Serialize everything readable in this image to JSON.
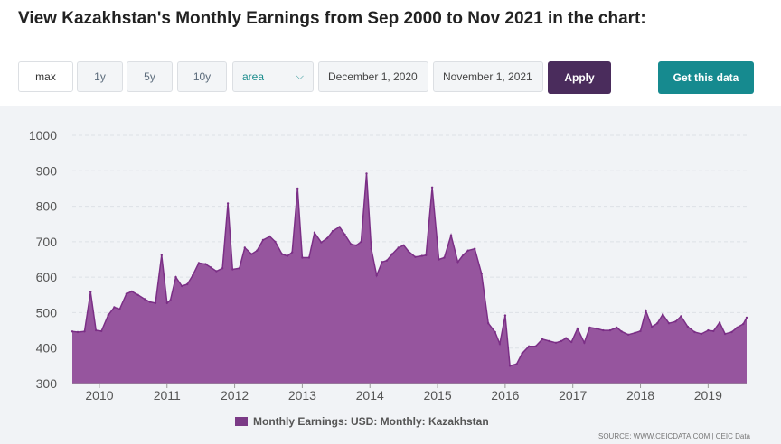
{
  "title": "View Kazakhstan's Monthly Earnings from Sep 2000 to Nov 2021 in the chart:",
  "controls": {
    "range_buttons": [
      "max",
      "1y",
      "5y",
      "10y"
    ],
    "chart_type_selected": "area",
    "date_from": "December 1, 2020",
    "date_to": "November 1, 2021",
    "apply_label": "Apply",
    "get_data_label": "Get this data"
  },
  "colors": {
    "area_fill": "#96559e",
    "area_stroke": "#7b2f86",
    "apply_bg": "#4a2c5c",
    "get_data_bg": "#168a8f",
    "panel_bg": "#f1f3f6"
  },
  "legend_label": "Monthly Earnings: USD: Monthly: Kazakhstan",
  "source_text": "SOURCE: WWW.CEICDATA.COM | CEIC Data",
  "chart_data": {
    "type": "area",
    "title": "",
    "xlabel": "",
    "ylabel": "",
    "ylim": [
      300,
      1000
    ],
    "yticks": [
      300,
      400,
      500,
      600,
      700,
      800,
      900,
      1000
    ],
    "xticks": [
      2010,
      2011,
      2012,
      2013,
      2014,
      2015,
      2016,
      2017,
      2018,
      2019
    ],
    "grid": true,
    "legend_position": "bottom",
    "series": [
      {
        "name": "Monthly Earnings: USD: Monthly: Kazakhstan",
        "x": [
          2009.6,
          2009.68,
          2009.78,
          2009.87,
          2009.95,
          2010.03,
          2010.13,
          2010.22,
          2010.3,
          2010.4,
          2010.48,
          2010.57,
          2010.67,
          2010.75,
          2010.83,
          2010.92,
          2011.0,
          2011.05,
          2011.13,
          2011.22,
          2011.3,
          2011.38,
          2011.47,
          2011.57,
          2011.65,
          2011.73,
          2011.82,
          2011.9,
          2011.97,
          2012.07,
          2012.15,
          2012.25,
          2012.33,
          2012.42,
          2012.52,
          2012.6,
          2012.7,
          2012.78,
          2012.85,
          2012.93,
          2013.0,
          2013.1,
          2013.18,
          2013.28,
          2013.37,
          2013.45,
          2013.55,
          2013.63,
          2013.72,
          2013.8,
          2013.87,
          2013.95,
          2014.02,
          2014.1,
          2014.18,
          2014.25,
          2014.33,
          2014.42,
          2014.5,
          2014.57,
          2014.67,
          2014.77,
          2014.83,
          2014.92,
          2015.02,
          2015.1,
          2015.2,
          2015.3,
          2015.38,
          2015.45,
          2015.55,
          2015.65,
          2015.75,
          2015.85,
          2015.92,
          2016.0,
          2016.07,
          2016.17,
          2016.25,
          2016.35,
          2016.45,
          2016.55,
          2016.65,
          2016.75,
          2016.83,
          2016.9,
          2016.98,
          2017.07,
          2017.17,
          2017.25,
          2017.35,
          2017.45,
          2017.55,
          2017.65,
          2017.72,
          2017.82,
          2017.92,
          2018.0,
          2018.08,
          2018.17,
          2018.25,
          2018.33,
          2018.42,
          2018.52,
          2018.6,
          2018.7,
          2018.8,
          2018.9,
          2019.0,
          2019.08,
          2019.17,
          2019.25,
          2019.35,
          2019.43,
          2019.52,
          2019.57
        ],
        "values": [
          447,
          445,
          447,
          558,
          450,
          448,
          493,
          515,
          510,
          553,
          560,
          550,
          538,
          530,
          527,
          662,
          527,
          535,
          600,
          575,
          580,
          605,
          640,
          637,
          627,
          617,
          625,
          808,
          622,
          625,
          683,
          665,
          675,
          705,
          715,
          700,
          665,
          660,
          670,
          850,
          655,
          655,
          725,
          698,
          710,
          730,
          742,
          720,
          693,
          690,
          700,
          892,
          680,
          605,
          643,
          647,
          665,
          683,
          690,
          673,
          657,
          660,
          662,
          853,
          650,
          655,
          718,
          643,
          663,
          675,
          680,
          610,
          470,
          445,
          412,
          492,
          350,
          355,
          385,
          405,
          405,
          425,
          420,
          415,
          420,
          428,
          417,
          455,
          415,
          458,
          455,
          450,
          450,
          458,
          447,
          438,
          443,
          448,
          505,
          460,
          470,
          495,
          470,
          475,
          490,
          460,
          445,
          440,
          450,
          448,
          472,
          440,
          445,
          458,
          468,
          486
        ]
      }
    ]
  }
}
